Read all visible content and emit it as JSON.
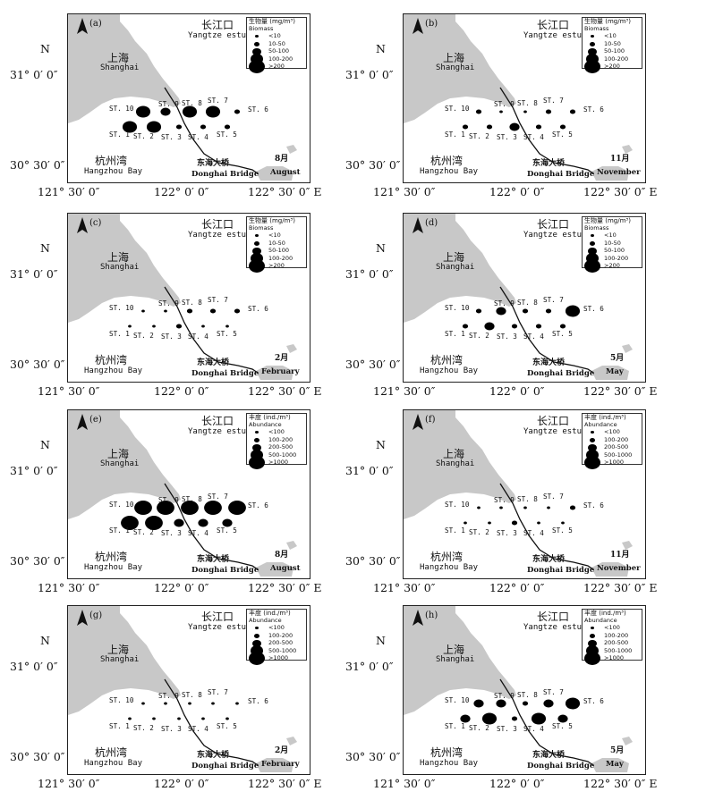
{
  "axes": {
    "n_label": "N",
    "lat_upper": "31° 0′ 0″",
    "lat_lower": "30° 30′ 0″",
    "lon_left": "121° 30′ 0″",
    "lon_mid": "122° 0′ 0″",
    "lon_right": "122° 30′ 0″ E"
  },
  "map_labels": {
    "estuary_cn": "长江口",
    "estuary_en": "Yangtze estuary",
    "shanghai_cn": "上海",
    "shanghai_en": "Shanghai",
    "bay_cn": "杭州湾",
    "bay_en": "Hangzhou Bay",
    "bridge_cn": "东海大桥",
    "bridge_en": "Donghai Bridge"
  },
  "stations": [
    "ST. 1",
    "ST. 2",
    "ST. 3",
    "ST. 4",
    "ST. 5",
    "ST. 6",
    "ST. 7",
    "ST. 8",
    "ST. 9",
    "ST. 10"
  ],
  "legends": {
    "biomass": {
      "title": "生物量 (mg/m³)",
      "subtitle": "Biomass",
      "classes": [
        "<10",
        "10-50",
        "50-100",
        "100-200",
        ">200"
      ]
    },
    "abundance": {
      "title": "丰度 (ind./m³)",
      "subtitle": "Abundance",
      "classes": [
        "<100",
        "100-200",
        "200-500",
        "500-1000",
        ">1000"
      ]
    }
  },
  "colors": {
    "land": "#c8c8c8",
    "dot": "#000000",
    "frame": "#222222"
  },
  "panels": [
    {
      "id": "a",
      "corner": "(a)",
      "month_cn": "8月",
      "month_en": "August",
      "legend": "biomass",
      "has_corner": true,
      "classes": [
        4,
        4,
        2,
        2,
        2,
        2,
        4,
        4,
        3,
        4
      ]
    },
    {
      "id": "b",
      "corner": "(b)",
      "month_cn": "11月",
      "month_en": "November",
      "legend": "biomass",
      "has_corner": true,
      "classes": [
        2,
        2,
        3,
        2,
        2,
        2,
        2,
        1,
        1,
        2
      ]
    },
    {
      "id": "c",
      "corner": "(c)",
      "month_cn": "2月",
      "month_en": "February",
      "legend": "biomass",
      "has_corner": true,
      "classes": [
        1,
        1,
        2,
        1,
        1,
        2,
        2,
        2,
        1,
        1
      ]
    },
    {
      "id": "d",
      "corner": "(d)",
      "month_cn": "5月",
      "month_en": "May",
      "legend": "biomass",
      "has_corner": true,
      "classes": [
        2,
        3,
        2,
        2,
        2,
        4,
        2,
        2,
        3,
        2
      ]
    },
    {
      "id": "e",
      "corner": "(e)",
      "month_cn": "8月",
      "month_en": "August",
      "legend": "abundance",
      "has_corner": true,
      "classes": [
        5,
        5,
        3,
        3,
        3,
        5,
        5,
        5,
        5,
        5
      ]
    },
    {
      "id": "f",
      "corner": "(f)",
      "month_cn": "11月",
      "month_en": "November",
      "legend": "abundance",
      "has_corner": true,
      "classes": [
        1,
        1,
        2,
        1,
        1,
        2,
        1,
        1,
        1,
        1
      ]
    },
    {
      "id": "g",
      "corner": "(g)",
      "month_cn": "2月",
      "month_en": "February",
      "legend": "abundance",
      "has_corner": true,
      "classes": [
        1,
        1,
        1,
        1,
        1,
        1,
        1,
        1,
        1,
        1
      ]
    },
    {
      "id": "h",
      "corner": "(h)",
      "month_cn": "5月",
      "month_en": "May",
      "legend": "abundance",
      "has_corner": true,
      "classes": [
        3,
        4,
        2,
        4,
        3,
        4,
        3,
        2,
        3,
        3
      ]
    }
  ]
}
